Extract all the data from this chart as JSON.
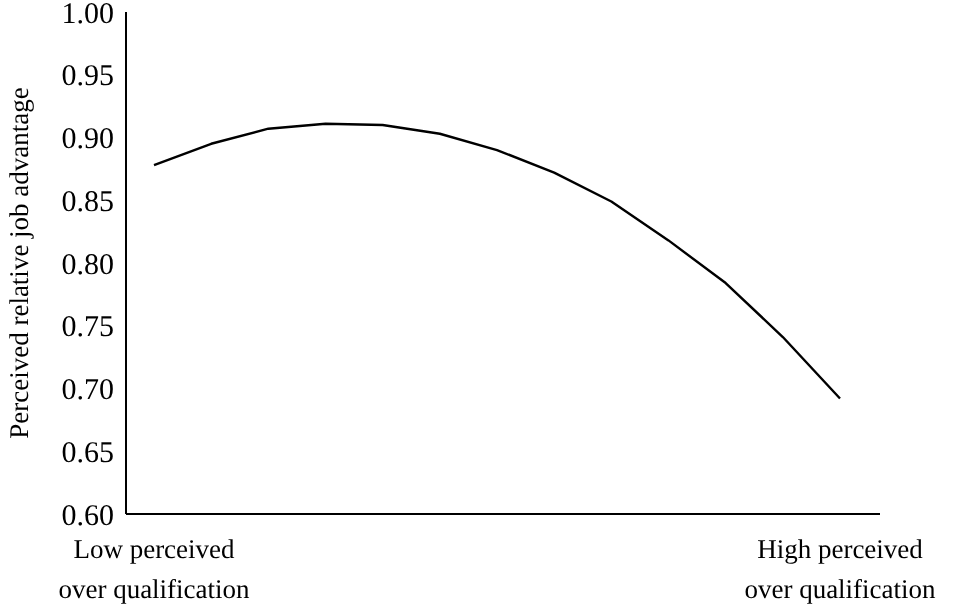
{
  "chart_data": {
    "type": "line",
    "ylabel": "Perceived relative job advantage",
    "categories": [
      "Low perceived\nover qualification",
      null,
      null,
      null,
      null,
      null,
      null,
      null,
      null,
      null,
      null,
      null,
      "High perceived\nover qualification"
    ],
    "series": [
      {
        "color": "#000000",
        "values": [
          0.878,
          0.895,
          0.907,
          0.911,
          0.91,
          0.903,
          0.89,
          0.872,
          0.849,
          0.818,
          0.784,
          0.741,
          0.692
        ]
      }
    ],
    "ylim": [
      0.6,
      1.0
    ],
    "yticks": [
      {
        "value": 0.6,
        "label": "0.60"
      },
      {
        "value": 0.65,
        "label": "0.65"
      },
      {
        "value": 0.7,
        "label": "0.70"
      },
      {
        "value": 0.75,
        "label": "0.75"
      },
      {
        "value": 0.8,
        "label": "0.80"
      },
      {
        "value": 0.85,
        "label": "0.85"
      },
      {
        "value": 0.9,
        "label": "0.90"
      },
      {
        "value": 0.95,
        "label": "0.95"
      },
      {
        "value": 1.0,
        "label": "1.00"
      }
    ],
    "grid": false,
    "marker": "none",
    "line_style": "solid"
  }
}
